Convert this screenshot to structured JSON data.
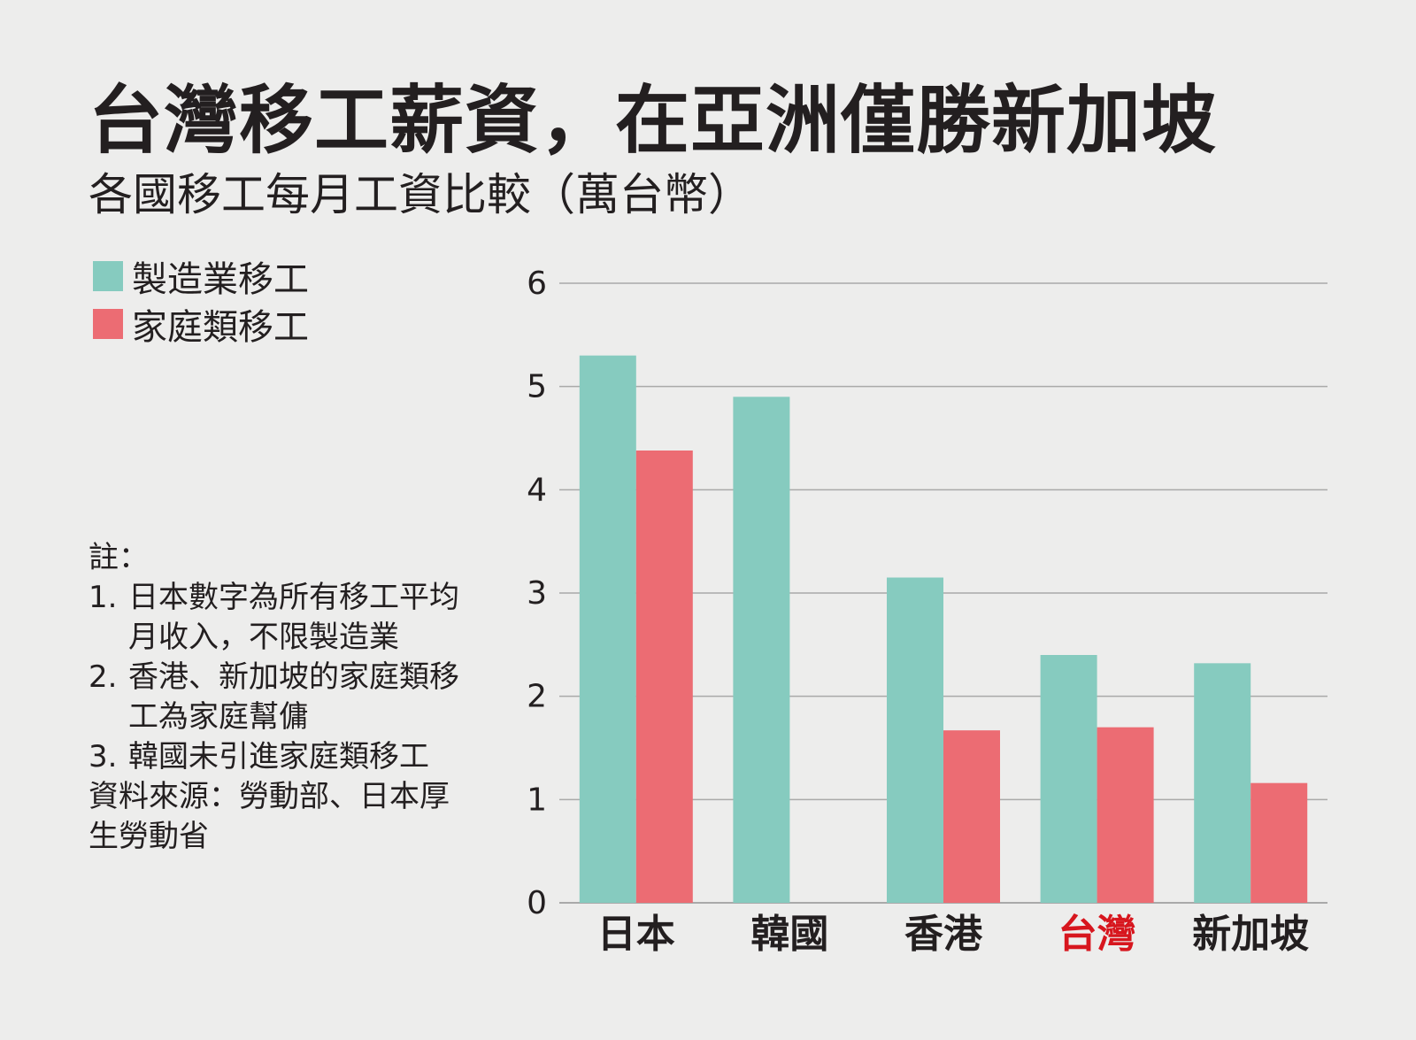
{
  "title": "台灣移工薪資，在亞洲僅勝新加坡",
  "subtitle": "各國移工每月工資比較（萬台幣）",
  "notes": {
    "heading": "註：",
    "items": [
      {
        "num": "1.",
        "text": "日本數字為所有移工平均月收入，不限製造業"
      },
      {
        "num": "2.",
        "text": "香港、新加坡的家庭類移工為家庭幫傭"
      },
      {
        "num": "3.",
        "text": "韓國未引進家庭類移工"
      }
    ],
    "source": "資料來源：勞動部、日本厚生勞動省"
  },
  "colors": {
    "manufacturing": "#86cbbf",
    "domestic": "#ec6c73",
    "highlight_label": "#d7161e",
    "text": "#231f20",
    "grid": "#a9a9a9"
  },
  "chart_data": {
    "type": "bar",
    "categories": [
      "日本",
      "韓國",
      "香港",
      "台灣",
      "新加坡"
    ],
    "highlight_category": "台灣",
    "series": [
      {
        "name": "製造業移工",
        "values": [
          5.3,
          4.9,
          3.15,
          2.4,
          2.32
        ]
      },
      {
        "name": "家庭類移工",
        "values": [
          4.38,
          null,
          1.67,
          1.7,
          1.16
        ]
      }
    ],
    "title": "台灣移工薪資，在亞洲僅勝新加坡",
    "subtitle": "各國移工每月工資比較（萬台幣）",
    "ylim": [
      0,
      6
    ],
    "yticks": [
      0,
      1,
      2,
      3,
      4,
      5,
      6
    ],
    "grid": true,
    "legend_position": "top-left"
  }
}
